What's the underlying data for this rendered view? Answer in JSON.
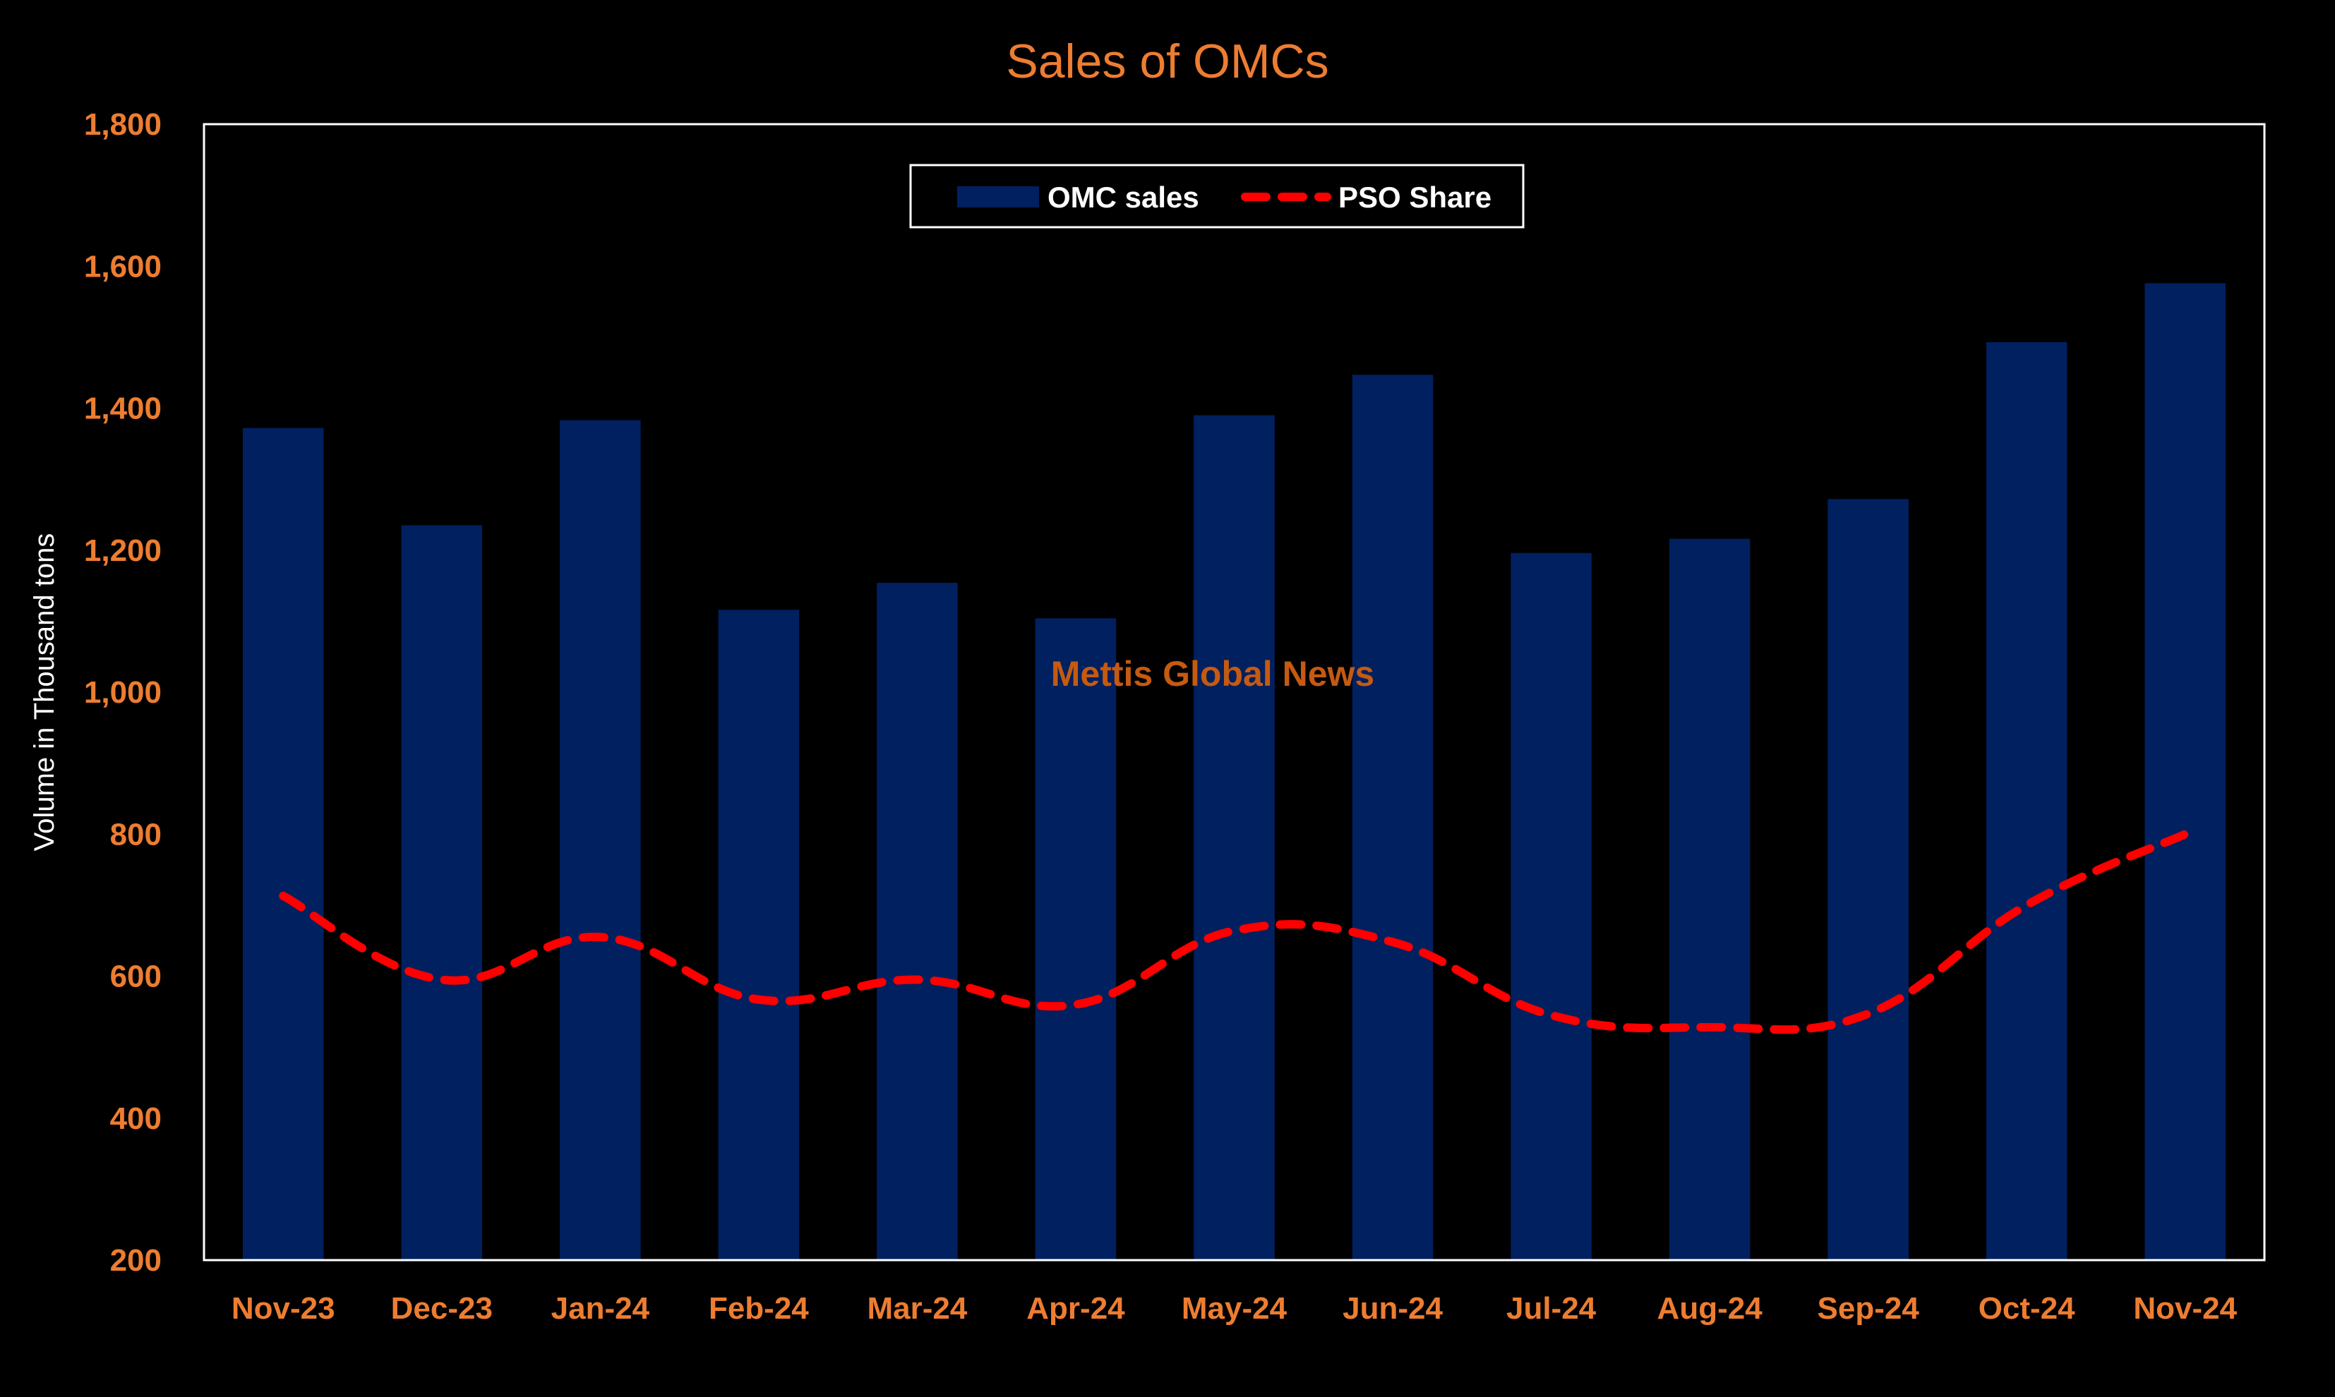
{
  "chart_data": {
    "type": "bar",
    "title": "Sales of OMCs",
    "xlabel": "",
    "ylabel": "Volume in Thousand tons",
    "ylim": [
      200,
      1800
    ],
    "yticks": [
      200,
      400,
      600,
      800,
      1000,
      1200,
      1400,
      1600,
      1800
    ],
    "ytick_labels": [
      "200",
      "400",
      "600",
      "800",
      "1,000",
      "1,200",
      "1,400",
      "1,600",
      "1,800"
    ],
    "categories": [
      "Nov-23",
      "Dec-23",
      "Jan-24",
      "Feb-24",
      "Mar-24",
      "Apr-24",
      "May-24",
      "Jun-24",
      "Jul-24",
      "Aug-24",
      "Sep-24",
      "Oct-24",
      "Nov-24"
    ],
    "series": [
      {
        "name": "OMC sales",
        "type": "bar",
        "color": "#002060",
        "values": [
          1372,
          1235,
          1383,
          1116,
          1154,
          1104,
          1390,
          1447,
          1196,
          1216,
          1272,
          1493,
          1576
        ]
      },
      {
        "name": "PSO Share",
        "type": "line",
        "style": "dashed-smooth",
        "color": "#FF0000",
        "values": [
          713,
          595,
          655,
          567,
          595,
          560,
          664,
          648,
          545,
          528,
          547,
          700,
          800
        ]
      }
    ],
    "legend_position": "top-center",
    "grid": false,
    "watermark": "Mettis Global News",
    "colors": {
      "background": "#000000",
      "text_accent": "#ED7D31",
      "watermark": "#C55A11",
      "plot_border": "#FFFFFF"
    }
  }
}
